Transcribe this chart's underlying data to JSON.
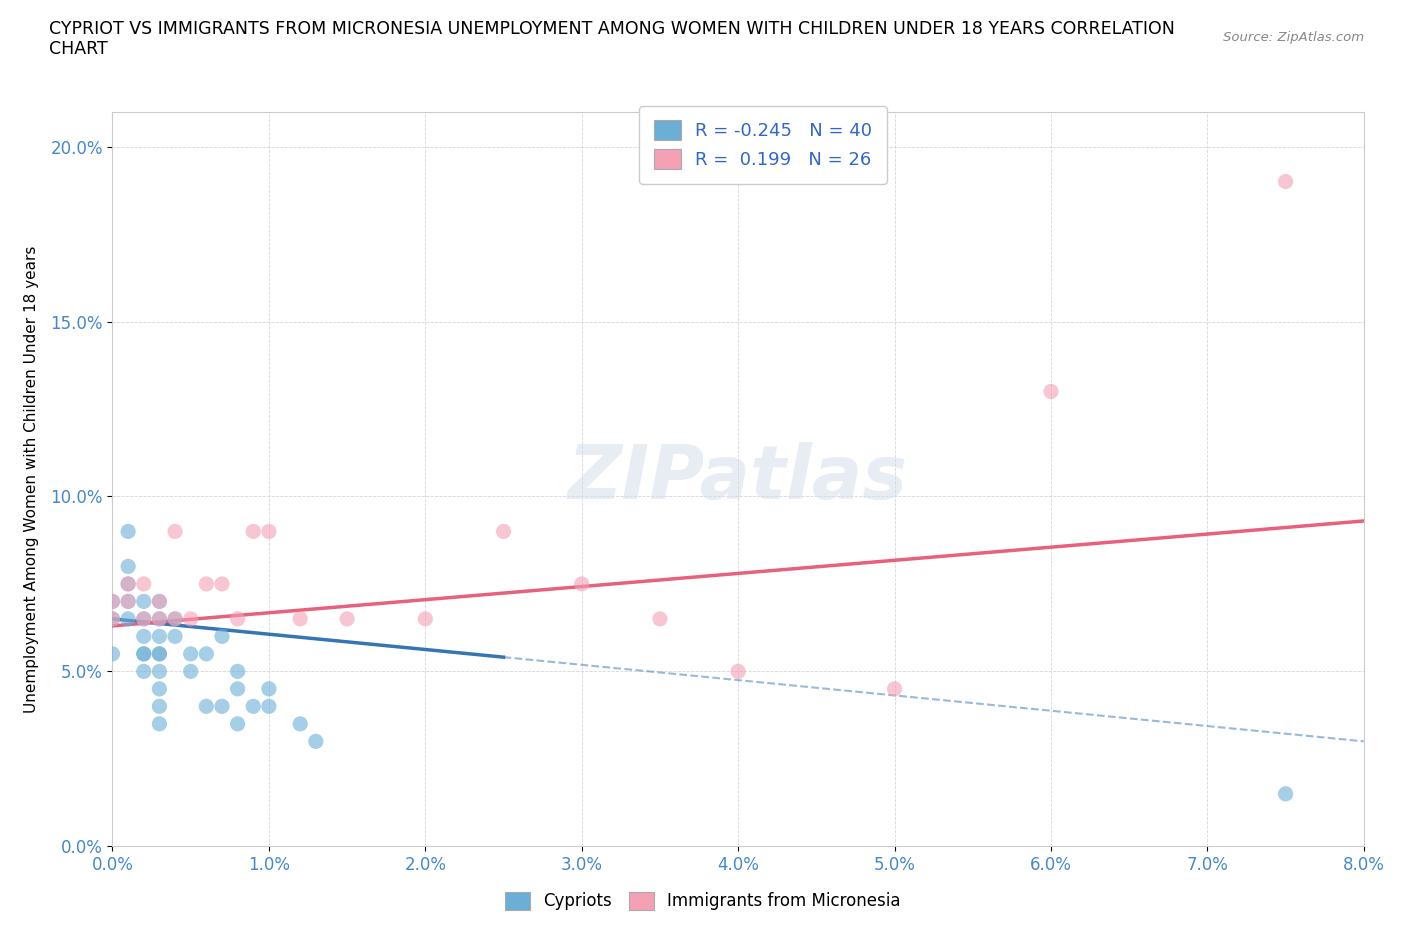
{
  "title_line1": "CYPRIOT VS IMMIGRANTS FROM MICRONESIA UNEMPLOYMENT AMONG WOMEN WITH CHILDREN UNDER 18 YEARS CORRELATION",
  "title_line2": "CHART",
  "source": "Source: ZipAtlas.com",
  "ylabel": "Unemployment Among Women with Children Under 18 years",
  "xlim": [
    0.0,
    0.08
  ],
  "ylim": [
    0.0,
    0.21
  ],
  "xticks": [
    0.0,
    0.01,
    0.02,
    0.03,
    0.04,
    0.05,
    0.06,
    0.07,
    0.08
  ],
  "yticks": [
    0.0,
    0.05,
    0.1,
    0.15,
    0.2
  ],
  "background_color": "#ffffff",
  "blue_color": "#6baed6",
  "pink_color": "#f4a0b5",
  "blue_line_color": "#3575b5",
  "pink_line_color": "#e8617a",
  "blue_R": -0.245,
  "blue_N": 40,
  "pink_R": 0.199,
  "pink_N": 26,
  "cypriot_x": [
    0.0,
    0.0,
    0.0,
    0.001,
    0.001,
    0.001,
    0.001,
    0.001,
    0.002,
    0.002,
    0.002,
    0.002,
    0.002,
    0.002,
    0.003,
    0.003,
    0.003,
    0.003,
    0.003,
    0.003,
    0.003,
    0.003,
    0.003,
    0.004,
    0.004,
    0.005,
    0.005,
    0.006,
    0.006,
    0.007,
    0.007,
    0.008,
    0.008,
    0.008,
    0.009,
    0.01,
    0.01,
    0.012,
    0.013,
    0.075
  ],
  "cypriot_y": [
    0.055,
    0.065,
    0.07,
    0.09,
    0.08,
    0.075,
    0.07,
    0.065,
    0.07,
    0.065,
    0.06,
    0.055,
    0.055,
    0.05,
    0.07,
    0.065,
    0.06,
    0.055,
    0.055,
    0.05,
    0.045,
    0.04,
    0.035,
    0.065,
    0.06,
    0.055,
    0.05,
    0.055,
    0.04,
    0.06,
    0.04,
    0.05,
    0.045,
    0.035,
    0.04,
    0.045,
    0.04,
    0.035,
    0.03,
    0.015
  ],
  "micronesia_x": [
    0.0,
    0.0,
    0.001,
    0.001,
    0.002,
    0.002,
    0.003,
    0.003,
    0.004,
    0.004,
    0.005,
    0.006,
    0.007,
    0.008,
    0.009,
    0.01,
    0.012,
    0.015,
    0.02,
    0.025,
    0.03,
    0.035,
    0.04,
    0.05,
    0.06,
    0.075
  ],
  "micronesia_y": [
    0.065,
    0.07,
    0.07,
    0.075,
    0.065,
    0.075,
    0.065,
    0.07,
    0.09,
    0.065,
    0.065,
    0.075,
    0.075,
    0.065,
    0.09,
    0.09,
    0.065,
    0.065,
    0.065,
    0.09,
    0.075,
    0.065,
    0.05,
    0.045,
    0.13,
    0.19
  ],
  "blue_trend_x0": 0.0,
  "blue_trend_y0": 0.065,
  "blue_trend_x1": 0.08,
  "blue_trend_y1": 0.03,
  "pink_trend_x0": 0.0,
  "pink_trend_y0": 0.063,
  "pink_trend_x1": 0.08,
  "pink_trend_y1": 0.093
}
